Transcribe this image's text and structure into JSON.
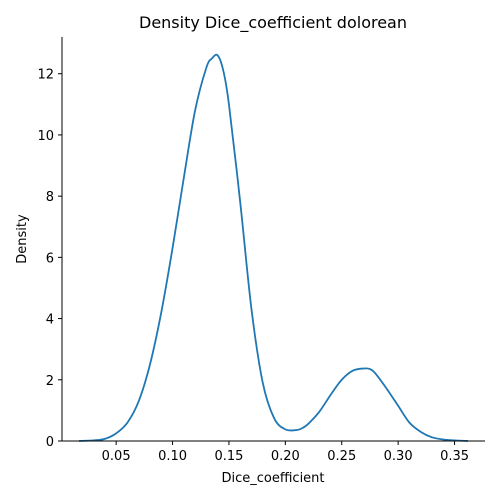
{
  "chart_data": {
    "type": "line",
    "title": "Density Dice_coefficient dolorean",
    "xlabel": "Dice_coefficient",
    "ylabel": "Density",
    "xlim": [
      0.002,
      0.377
    ],
    "ylim": [
      0,
      13.2
    ],
    "xticks": [
      0.05,
      0.1,
      0.15,
      0.2,
      0.25,
      0.3,
      0.35
    ],
    "xtick_labels": [
      "0.05",
      "0.10",
      "0.15",
      "0.20",
      "0.25",
      "0.30",
      "0.35"
    ],
    "yticks": [
      0,
      2,
      4,
      6,
      8,
      10,
      12
    ],
    "ytick_labels": [
      "0",
      "2",
      "4",
      "6",
      "8",
      "10",
      "12"
    ],
    "grid": false,
    "series": [
      {
        "color": "#1f77b4",
        "x": [
          0.017,
          0.03,
          0.04,
          0.05,
          0.06,
          0.07,
          0.08,
          0.09,
          0.1,
          0.11,
          0.12,
          0.13,
          0.135,
          0.14,
          0.145,
          0.15,
          0.16,
          0.17,
          0.18,
          0.19,
          0.2,
          0.21,
          0.215,
          0.22,
          0.23,
          0.24,
          0.25,
          0.26,
          0.27,
          0.275,
          0.28,
          0.29,
          0.3,
          0.31,
          0.32,
          0.33,
          0.34,
          0.35,
          0.362
        ],
        "y": [
          0.0,
          0.02,
          0.07,
          0.25,
          0.6,
          1.3,
          2.5,
          4.2,
          6.3,
          8.6,
          10.8,
          12.2,
          12.5,
          12.6,
          12.1,
          11.0,
          7.8,
          4.3,
          1.9,
          0.75,
          0.38,
          0.36,
          0.42,
          0.55,
          0.95,
          1.5,
          2.0,
          2.3,
          2.37,
          2.35,
          2.2,
          1.7,
          1.15,
          0.6,
          0.3,
          0.12,
          0.05,
          0.02,
          0.0
        ]
      }
    ]
  }
}
